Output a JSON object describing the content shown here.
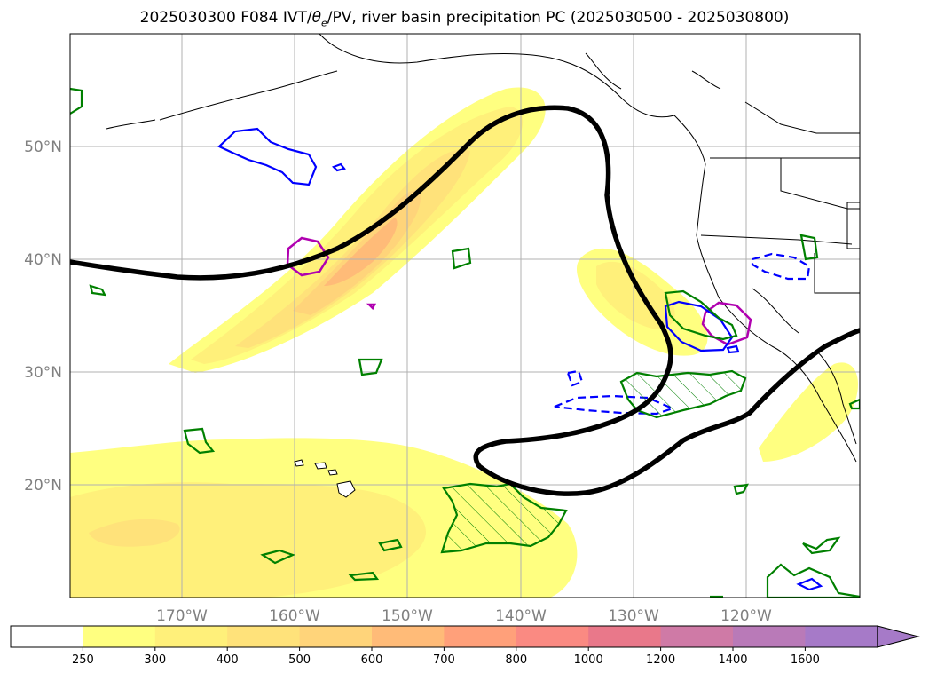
{
  "title": {
    "prefix": "2025030300 F084 IVT/",
    "theta": "θ",
    "theta_sub": "e",
    "suffix": "/PV, river basin precipitation PC (2025030500 - 2025030800)"
  },
  "map": {
    "lat_labels": [
      "50°N",
      "40°N",
      "30°N",
      "20°N"
    ],
    "lon_labels": [
      "170°W",
      "160°W",
      "150°W",
      "140°W",
      "130°W",
      "120°W"
    ],
    "colors": {
      "land_outline": "#000000",
      "grid": "#b0b0b0",
      "pv_contour": "#000000",
      "theta_e_anomaly": "#0000ff",
      "precip_outline": "#008000",
      "pv_cutoff": "#b000b0"
    }
  },
  "colorbar": {
    "ticks": [
      "250",
      "300",
      "400",
      "500",
      "600",
      "700",
      "800",
      "1000",
      "1200",
      "1400",
      "1600"
    ],
    "colors": [
      "#ffffff",
      "#ffff80",
      "#fff07a",
      "#ffe27a",
      "#ffd47a",
      "#ffbb78",
      "#ffa07a",
      "#fa8a82",
      "#e9788a",
      "#cf7aa6",
      "#b97ab8",
      "#a67ac8"
    ]
  }
}
